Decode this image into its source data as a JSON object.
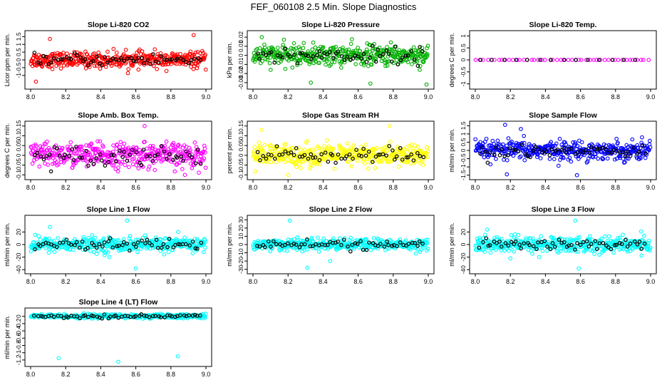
{
  "page_title": "FEF_060108  2.5 Min. Slope Diagnostics",
  "chart_data": [
    {
      "type": "scatter",
      "title": "Slope Li-820 CO2",
      "ylabel": "Licor ppm per min.",
      "color": "#ff0000",
      "xlim": [
        8.0,
        9.0
      ],
      "ylim": [
        -1.7,
        1.7
      ],
      "xticks": [
        8.0,
        8.2,
        8.4,
        8.6,
        8.8,
        9.0
      ],
      "yticks": [
        -1.0,
        -0.5,
        0.0,
        0.5,
        1.0,
        1.5
      ],
      "spread": 0.35,
      "outliers": [
        [
          8.11,
          1.35
        ],
        [
          8.93,
          1.6
        ],
        [
          8.03,
          -1.4
        ]
      ]
    },
    {
      "type": "scatter",
      "title": "Slope Li-820 Pressure",
      "ylabel": "kPa per min.",
      "color": "#00b000",
      "xlim": [
        8.0,
        9.0
      ],
      "ylim": [
        -0.034,
        0.024
      ],
      "xticks": [
        8.0,
        8.2,
        8.4,
        8.6,
        8.8,
        9.0
      ],
      "yticks": [
        -0.03,
        -0.02,
        -0.01,
        0.0,
        0.01,
        0.02
      ],
      "spread": 0.008,
      "outliers": [
        [
          8.05,
          0.02
        ],
        [
          8.33,
          -0.03
        ],
        [
          8.67,
          -0.031
        ],
        [
          8.99,
          -0.032
        ]
      ]
    },
    {
      "type": "scatter",
      "title": "Slope Li-820 Temp.",
      "ylabel": "degrees C per min.",
      "color": "#ff00ff",
      "xlim": [
        8.0,
        9.0
      ],
      "ylim": [
        -1.1,
        1.1
      ],
      "xticks": [
        8.0,
        8.2,
        8.4,
        8.6,
        8.8,
        9.0
      ],
      "yticks": [
        -1.0,
        -0.5,
        0.0,
        0.5,
        1.0
      ],
      "spread": 0.0,
      "outliers": []
    },
    {
      "type": "scatter",
      "title": "Slope Amb. Box Temp.",
      "ylabel": "degrees C per min.",
      "color": "#ff00ff",
      "xlim": [
        8.0,
        9.0
      ],
      "ylim": [
        -0.11,
        0.16
      ],
      "xticks": [
        8.0,
        8.2,
        8.4,
        8.6,
        8.8,
        9.0
      ],
      "yticks": [
        -0.1,
        -0.05,
        0.0,
        0.05,
        0.1,
        0.15
      ],
      "spread": 0.045,
      "outliers": [
        [
          8.65,
          0.15
        ],
        [
          8.88,
          -0.1
        ]
      ]
    },
    {
      "type": "scatter",
      "title": "Slope Gas Stream RH",
      "ylabel": "percent per min.",
      "color": "#ffff00",
      "xlim": [
        8.0,
        9.0
      ],
      "ylim": [
        -0.11,
        0.16
      ],
      "xticks": [
        8.0,
        8.2,
        8.4,
        8.6,
        8.8,
        9.0
      ],
      "yticks": [
        -0.1,
        -0.05,
        0.0,
        0.05,
        0.1,
        0.15
      ],
      "spread": 0.04,
      "outliers": [
        [
          8.05,
          0.13
        ],
        [
          8.78,
          0.15
        ],
        [
          8.2,
          -0.1
        ]
      ]
    },
    {
      "type": "scatter",
      "title": "Slope Sample Flow",
      "ylabel": "ml/min per min.",
      "color": "#0000ff",
      "xlim": [
        8.0,
        9.0
      ],
      "ylim": [
        -1.6,
        1.6
      ],
      "xticks": [
        8.0,
        8.2,
        8.4,
        8.6,
        8.8,
        9.0
      ],
      "yticks": [
        -1.5,
        -1.0,
        -0.5,
        0.0,
        0.5,
        1.0,
        1.5
      ],
      "spread": 0.4,
      "outliers": [
        [
          8.17,
          1.55
        ],
        [
          8.18,
          -1.45
        ],
        [
          8.58,
          -1.5
        ],
        [
          8.26,
          1.3
        ]
      ]
    },
    {
      "type": "scatter",
      "title": "Slope Line 1 Flow",
      "ylabel": "ml/min per min.",
      "color": "#00ffff",
      "xlim": [
        8.0,
        9.0
      ],
      "ylim": [
        -42,
        42
      ],
      "xticks": [
        8.0,
        8.2,
        8.4,
        8.6,
        8.8,
        9.0
      ],
      "yticks": [
        -40,
        -20,
        0,
        20
      ],
      "spread": 8,
      "outliers": [
        [
          8.55,
          38
        ],
        [
          8.6,
          -38
        ],
        [
          8.11,
          28
        ],
        [
          8.45,
          -20
        ]
      ]
    },
    {
      "type": "scatter",
      "title": "Slope Line 2 Flow",
      "ylabel": "ml/min per min.",
      "color": "#00ffff",
      "xlim": [
        8.0,
        9.0
      ],
      "ylim": [
        -32,
        32
      ],
      "xticks": [
        8.0,
        8.2,
        8.4,
        8.6,
        8.8,
        9.0
      ],
      "yticks": [
        -30,
        -20,
        -10,
        0,
        10,
        20,
        30
      ],
      "spread": 5,
      "outliers": [
        [
          8.21,
          29
        ],
        [
          8.44,
          -20
        ],
        [
          8.31,
          -28
        ]
      ]
    },
    {
      "type": "scatter",
      "title": "Slope Line 3 Flow",
      "ylabel": "ml/min per min.",
      "color": "#00ffff",
      "xlim": [
        8.0,
        9.0
      ],
      "ylim": [
        -42,
        42
      ],
      "xticks": [
        8.0,
        8.2,
        8.4,
        8.6,
        8.8,
        9.0
      ],
      "yticks": [
        -40,
        -20,
        0,
        20
      ],
      "spread": 9,
      "outliers": [
        [
          8.57,
          38
        ],
        [
          8.59,
          -38
        ],
        [
          8.2,
          -22
        ]
      ]
    },
    {
      "type": "scatter",
      "title": "Slope Line 4 (LT) Flow",
      "ylabel": "ml/min per min.",
      "color": "#00ffff",
      "xlim": [
        8.0,
        9.0
      ],
      "ylim": [
        -1.3,
        0.15
      ],
      "xticks": [
        8.0,
        8.2,
        8.4,
        8.6,
        8.8,
        9.0
      ],
      "yticks": [
        -1.2,
        -1.0,
        -0.8,
        -0.6,
        -0.4,
        -0.2,
        0.0
      ],
      "spread": 0.04,
      "outliers": [
        [
          8.16,
          -1.15
        ],
        [
          8.84,
          -1.1
        ],
        [
          8.5,
          -1.25
        ]
      ]
    }
  ]
}
